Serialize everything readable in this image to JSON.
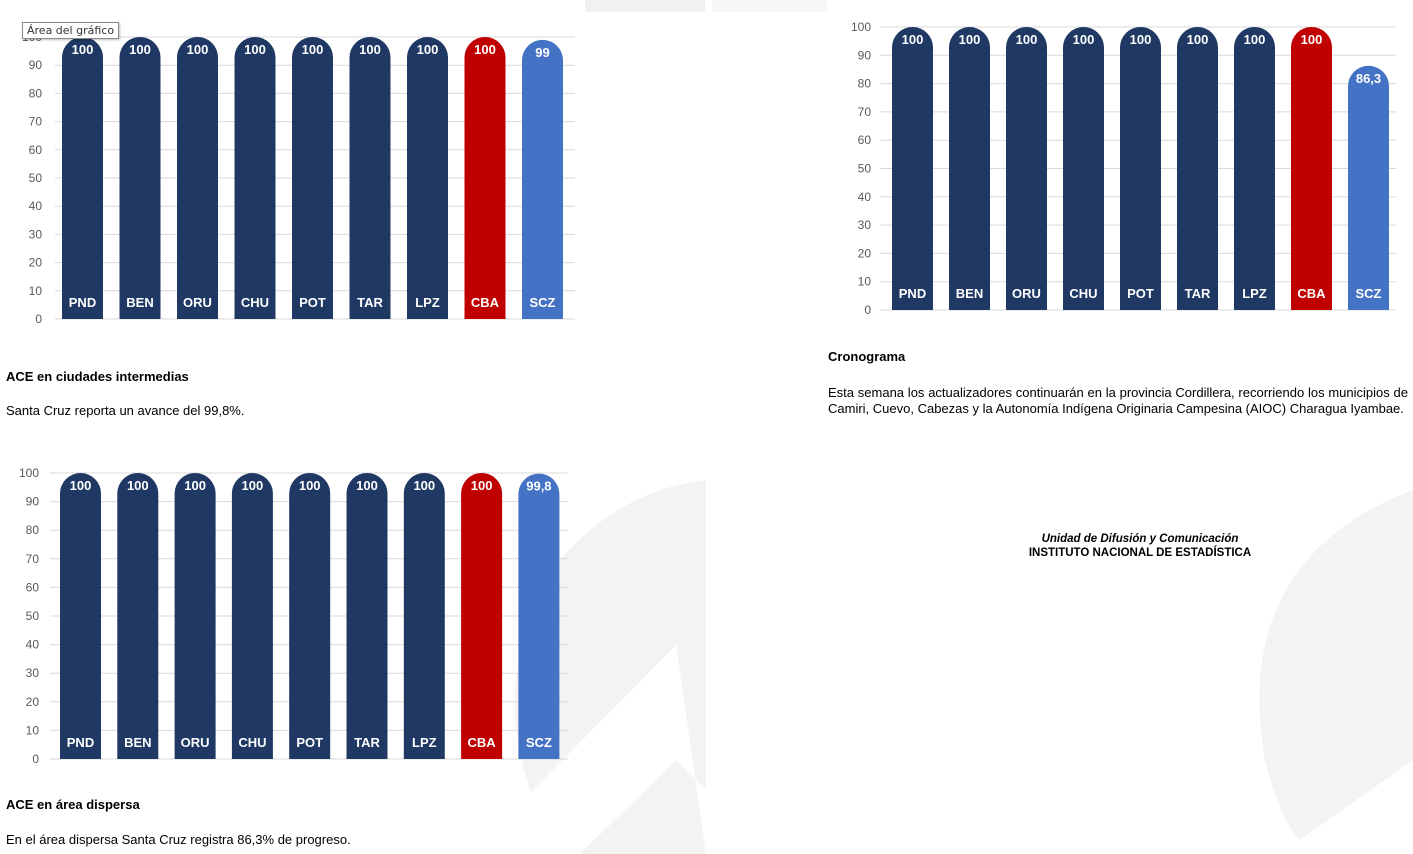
{
  "tooltip": "Área del gráfico",
  "chart_data": [
    {
      "type": "bar",
      "categories": [
        "PND",
        "BEN",
        "ORU",
        "CHU",
        "POT",
        "TAR",
        "LPZ",
        "CBA",
        "SCZ"
      ],
      "values": [
        100,
        100,
        100,
        100,
        100,
        100,
        100,
        100,
        99
      ],
      "value_labels": [
        "100",
        "100",
        "100",
        "100",
        "100",
        "100",
        "100",
        "100",
        "99"
      ],
      "ylim": [
        0,
        100
      ],
      "yticks": [
        "0",
        "10",
        "20",
        "30",
        "40",
        "50",
        "60",
        "70",
        "80",
        "90",
        "100"
      ],
      "grid": true,
      "colors": [
        "#1f3864",
        "#1f3864",
        "#1f3864",
        "#1f3864",
        "#1f3864",
        "#1f3864",
        "#1f3864",
        "#c00000",
        "#4472c4"
      ]
    },
    {
      "type": "bar",
      "categories": [
        "PND",
        "BEN",
        "ORU",
        "CHU",
        "POT",
        "TAR",
        "LPZ",
        "CBA",
        "SCZ"
      ],
      "values": [
        100,
        100,
        100,
        100,
        100,
        100,
        100,
        100,
        86.3
      ],
      "value_labels": [
        "100",
        "100",
        "100",
        "100",
        "100",
        "100",
        "100",
        "100",
        "86,3"
      ],
      "ylim": [
        0,
        100
      ],
      "yticks": [
        "0",
        "10",
        "20",
        "30",
        "40",
        "50",
        "60",
        "70",
        "80",
        "90",
        "100"
      ],
      "grid": true,
      "colors": [
        "#1f3864",
        "#1f3864",
        "#1f3864",
        "#1f3864",
        "#1f3864",
        "#1f3864",
        "#1f3864",
        "#c00000",
        "#4472c4"
      ]
    },
    {
      "type": "bar",
      "categories": [
        "PND",
        "BEN",
        "ORU",
        "CHU",
        "POT",
        "TAR",
        "LPZ",
        "CBA",
        "SCZ"
      ],
      "values": [
        100,
        100,
        100,
        100,
        100,
        100,
        100,
        100,
        99.8
      ],
      "value_labels": [
        "100",
        "100",
        "100",
        "100",
        "100",
        "100",
        "100",
        "100",
        "99,8"
      ],
      "ylim": [
        0,
        100
      ],
      "yticks": [
        "0",
        "10",
        "20",
        "30",
        "40",
        "50",
        "60",
        "70",
        "80",
        "90",
        "100"
      ],
      "grid": true,
      "colors": [
        "#1f3864",
        "#1f3864",
        "#1f3864",
        "#1f3864",
        "#1f3864",
        "#1f3864",
        "#1f3864",
        "#c00000",
        "#4472c4"
      ]
    }
  ],
  "sections": {
    "intermedias": {
      "heading": "ACE en ciudades intermedias",
      "text": "Santa Cruz reporta un avance del 99,8%."
    },
    "dispersa": {
      "heading": "ACE en área dispersa",
      "text": "En el área dispersa Santa Cruz registra 86,3% de progreso."
    },
    "cronograma": {
      "heading": "Cronograma",
      "text": "Esta semana los actualizadores continuarán en la provincia Cordillera, recorriendo los municipios de Camiri, Cuevo, Cabezas y la Autonomía Indígena Originaria Campesina (AIOC) Charagua Iyambae."
    }
  },
  "footer": {
    "unit": "Unidad de Difusión y Comunicación",
    "institute": "INSTITUTO NACIONAL DE ESTADÍSTICA"
  }
}
